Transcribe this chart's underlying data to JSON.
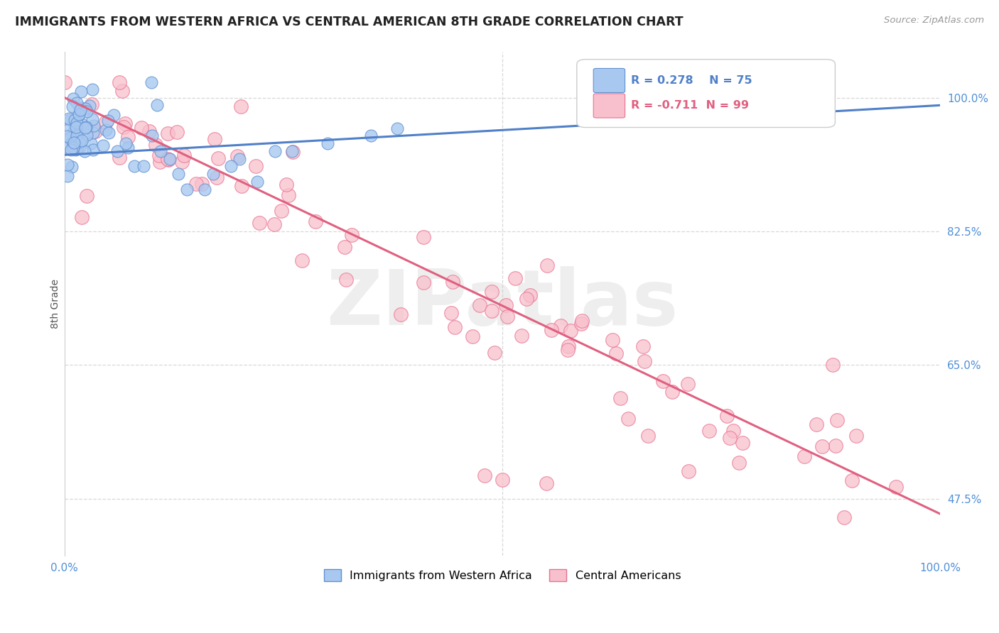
{
  "title": "IMMIGRANTS FROM WESTERN AFRICA VS CENTRAL AMERICAN 8TH GRADE CORRELATION CHART",
  "source_text": "Source: ZipAtlas.com",
  "ylabel": "8th Grade",
  "xlim": [
    0.0,
    1.0
  ],
  "ylim": [
    0.4,
    1.06
  ],
  "yticks": [
    0.475,
    0.65,
    0.825,
    1.0
  ],
  "ytick_labels": [
    "47.5%",
    "65.0%",
    "82.5%",
    "100.0%"
  ],
  "xticks": [
    0.0,
    1.0
  ],
  "xtick_labels": [
    "0.0%",
    "100.0%"
  ],
  "blue_R": 0.278,
  "blue_N": 75,
  "pink_R": -0.711,
  "pink_N": 99,
  "blue_color": "#a8c8f0",
  "pink_color": "#f8c0cc",
  "blue_edge_color": "#6090d0",
  "pink_edge_color": "#e87090",
  "blue_line_color": "#5080c8",
  "pink_line_color": "#e06080",
  "blue_legend_label": "Immigrants from Western Africa",
  "pink_legend_label": "Central Americans",
  "watermark": "ZIPatlas",
  "background_color": "#ffffff",
  "grid_color": "#d8d8d8",
  "tick_color": "#5090d8",
  "ylabel_color": "#555555",
  "title_color": "#222222",
  "source_color": "#999999"
}
